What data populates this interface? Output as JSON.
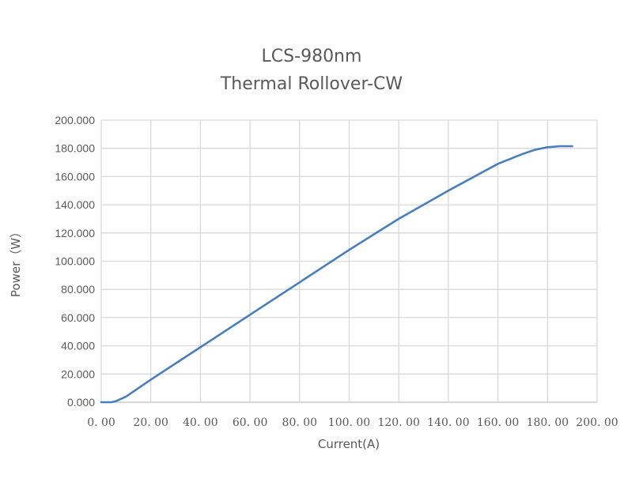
{
  "chart_data": {
    "type": "line",
    "title": "LCS-980nm",
    "subtitle": "Thermal Rollover-CW",
    "xlabel": "Current(A)",
    "ylabel": "Power（W）",
    "xlim": [
      0,
      200
    ],
    "ylim": [
      0,
      200
    ],
    "grid": true,
    "legend": "none",
    "x_ticks": [
      "0.00",
      "20.00",
      "40.00",
      "60.00",
      "80.00",
      "100.00",
      "120.00",
      "140.00",
      "160.00",
      "180.00",
      "200.00"
    ],
    "y_ticks": [
      "0.000",
      "20.000",
      "40.000",
      "60.000",
      "80.000",
      "100.000",
      "120.000",
      "140.000",
      "160.000",
      "180.000",
      "200.000"
    ],
    "series": [
      {
        "name": "Power",
        "color": "#4a7ebb",
        "x": [
          0,
          4,
          6,
          10,
          20,
          40,
          60,
          80,
          100,
          120,
          140,
          160,
          170,
          175,
          180,
          185,
          190
        ],
        "y": [
          0,
          0,
          0.8,
          4,
          16,
          39,
          62,
          85,
          108,
          130,
          150,
          169,
          176,
          179,
          180.8,
          181.5,
          181.5
        ]
      }
    ]
  }
}
